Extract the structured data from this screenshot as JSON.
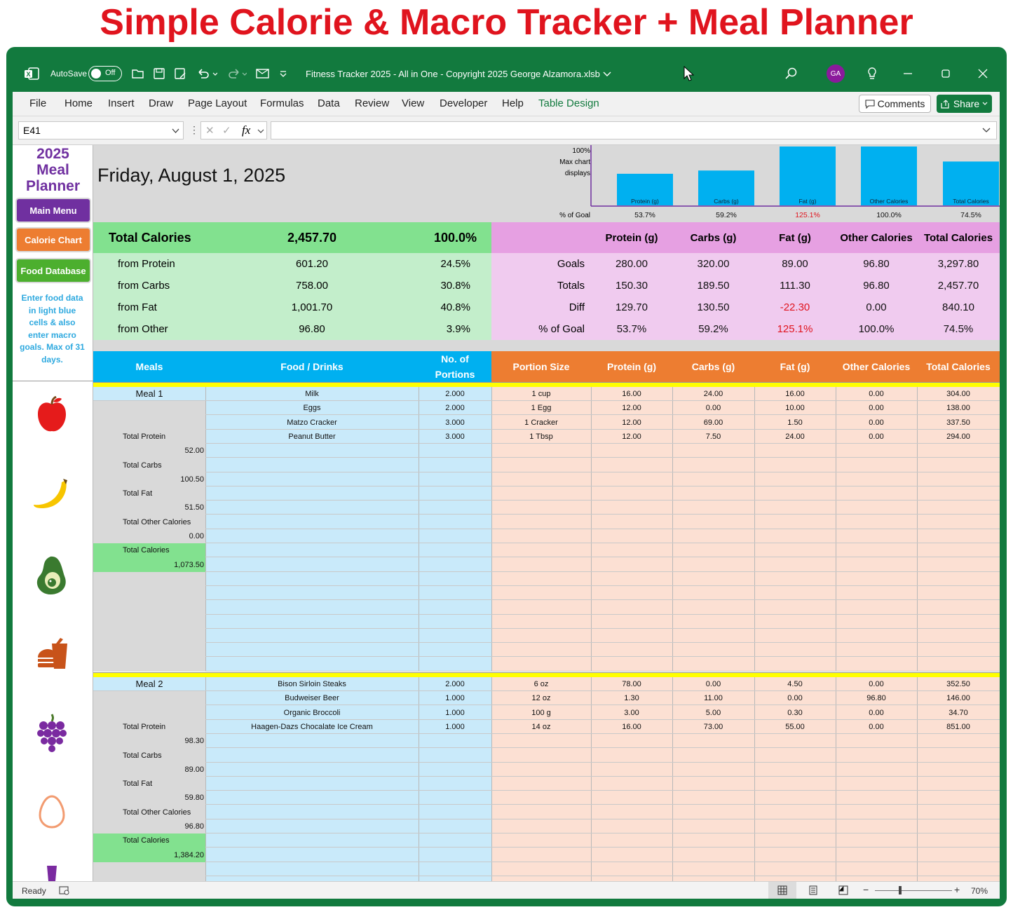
{
  "banner": "Simple Calorie & Macro Tracker + Meal Planner",
  "titlebar": {
    "autosave": "AutoSave",
    "off": "Off",
    "filename": "Fitness Tracker 2025 - All in One - Copyright 2025 George Alzamora.xlsb",
    "avatar": "GA"
  },
  "menu": [
    "File",
    "Home",
    "Insert",
    "Draw",
    "Page Layout",
    "Formulas",
    "Data",
    "Review",
    "View",
    "Developer",
    "Help",
    "Table Design"
  ],
  "comments": "Comments",
  "share": "Share",
  "namebox": "E41",
  "sidebar": {
    "title1": "2025",
    "title2": "Meal",
    "title3": "Planner",
    "main_menu": "Main Menu",
    "calorie_chart": "Calorie Chart",
    "food_database": "Food Database",
    "note": "Enter food data in light blue cells & also enter macro goals. Max of 31 days."
  },
  "date": "Friday, August 1, 2025",
  "chart_data": {
    "type": "bar",
    "categories": [
      "Protein (g)",
      "Carbs (g)",
      "Fat (g)",
      "Other Calories",
      "Total Calories"
    ],
    "values": [
      53.7,
      59.2,
      125.1,
      100.0,
      74.5
    ],
    "value_labels": [
      "53.7%",
      "59.2%",
      "125.1%",
      "100.0%",
      "74.5%"
    ],
    "ylim": [
      0,
      100
    ],
    "note_lines": [
      "100%",
      "Max chart",
      "displays"
    ],
    "xrow_label": "% of Goal"
  },
  "totals": {
    "label": "Total Calories",
    "value": "2,457.70",
    "pct": "100.0%",
    "rows": [
      {
        "label": "from Protein",
        "value": "601.20",
        "pct": "24.5%"
      },
      {
        "label": "from Carbs",
        "value": "758.00",
        "pct": "30.8%"
      },
      {
        "label": "from Fat",
        "value": "1,001.70",
        "pct": "40.8%"
      },
      {
        "label": "from Other",
        "value": "96.80",
        "pct": "3.9%"
      }
    ]
  },
  "goals": {
    "headers": [
      "Protein (g)",
      "Carbs (g)",
      "Fat (g)",
      "Other Calories",
      "Total Calories"
    ],
    "rows": [
      {
        "label": "Goals",
        "values": [
          "280.00",
          "320.00",
          "89.00",
          "96.80",
          "3,297.80"
        ]
      },
      {
        "label": "Totals",
        "values": [
          "150.30",
          "189.50",
          "111.30",
          "96.80",
          "2,457.70"
        ]
      },
      {
        "label": "Diff",
        "values": [
          "129.70",
          "130.50",
          "-22.30",
          "0.00",
          "840.10"
        ]
      },
      {
        "label": "% of Goal",
        "values": [
          "53.7%",
          "59.2%",
          "125.1%",
          "100.0%",
          "74.5%"
        ]
      }
    ]
  },
  "table_headers": {
    "meals": "Meals",
    "food": "Food / Drinks",
    "portions": "No. of Portions",
    "portion_size": "Portion Size",
    "protein": "Protein (g)",
    "carbs": "Carbs (g)",
    "fat": "Fat (g)",
    "other": "Other Calories",
    "total": "Total Calories"
  },
  "meal1": {
    "name": "Meal 1",
    "items": [
      [
        "Milk",
        "2.000",
        "1 cup",
        "16.00",
        "24.00",
        "16.00",
        "0.00",
        "304.00"
      ],
      [
        "Eggs",
        "2.000",
        "1 Egg",
        "12.00",
        "0.00",
        "10.00",
        "0.00",
        "138.00"
      ],
      [
        "Matzo Cracker",
        "3.000",
        "1 Cracker",
        "12.00",
        "69.00",
        "1.50",
        "0.00",
        "337.50"
      ],
      [
        "Peanut Butter",
        "3.000",
        "1 Tbsp",
        "12.00",
        "7.50",
        "24.00",
        "0.00",
        "294.00"
      ]
    ],
    "summary": [
      [
        "Total Protein",
        "52.00"
      ],
      [
        "Total Carbs",
        "100.50"
      ],
      [
        "Total Fat",
        "51.50"
      ],
      [
        "Total Other Calories",
        "0.00"
      ],
      [
        "Total Calories",
        "1,073.50"
      ]
    ]
  },
  "meal2": {
    "name": "Meal 2",
    "items": [
      [
        "Bison Sirloin Steaks",
        "2.000",
        "6 oz",
        "78.00",
        "0.00",
        "4.50",
        "0.00",
        "352.50"
      ],
      [
        "Budweiser Beer",
        "1.000",
        "12 oz",
        "1.30",
        "11.00",
        "0.00",
        "96.80",
        "146.00"
      ],
      [
        "Organic Broccoli",
        "1.000",
        "100 g",
        "3.00",
        "5.00",
        "0.30",
        "0.00",
        "34.70"
      ],
      [
        "Haagen-Dazs Chocalate Ice Cream",
        "1.000",
        "14 oz",
        "16.00",
        "73.00",
        "55.00",
        "0.00",
        "851.00"
      ]
    ],
    "summary": [
      [
        "Total Protein",
        "98.30"
      ],
      [
        "Total Carbs",
        "89.00"
      ],
      [
        "Total Fat",
        "59.80"
      ],
      [
        "Total Other Calories",
        "96.80"
      ],
      [
        "Total Calories",
        "1,384.20"
      ]
    ]
  },
  "status": {
    "ready": "Ready",
    "zoom": "70%"
  },
  "colors": {
    "green": "#127a3e",
    "blue": "#00b0f0",
    "orange": "#ed7d31",
    "lightblue": "#c9eafa",
    "peach": "#fce0d3",
    "pink": "#f0cbef",
    "lightgreen": "#c3eecb",
    "brightgreen": "#82e18f",
    "red": "#e0141e"
  }
}
